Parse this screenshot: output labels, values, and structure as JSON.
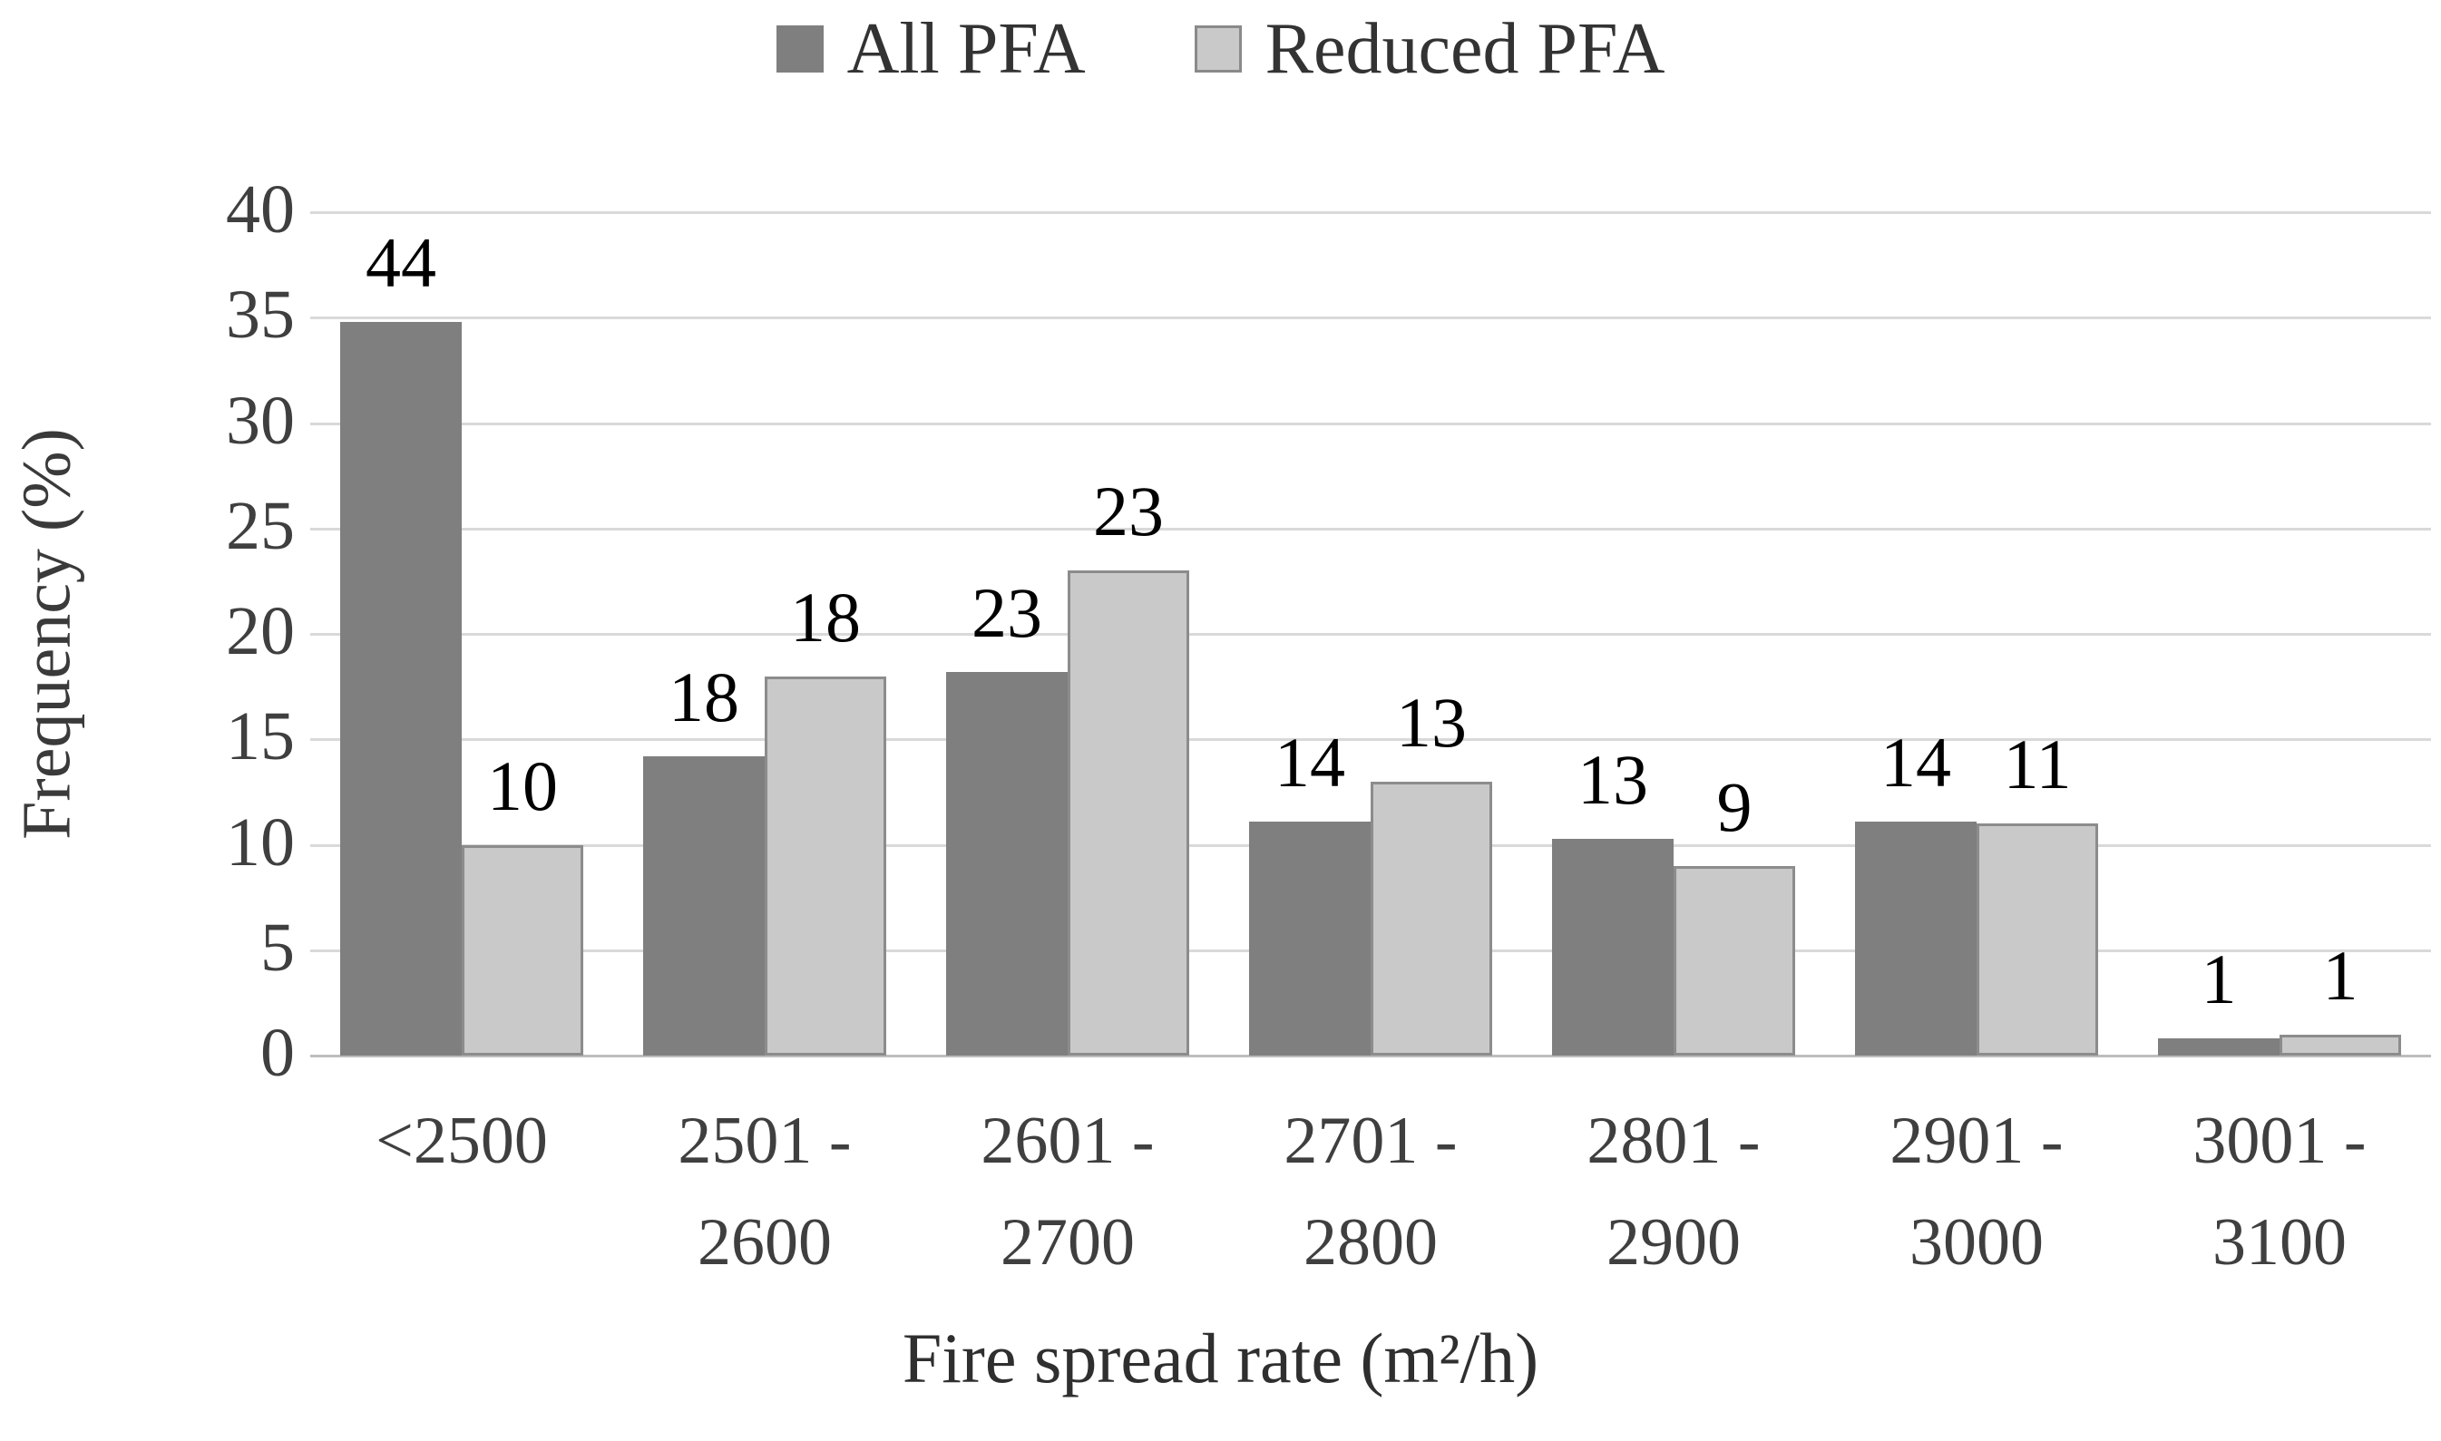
{
  "chart_data": {
    "type": "bar",
    "title": "",
    "xlabel": "Fire spread rate (m²/h)",
    "ylabel": "Frequency (%)",
    "ylim": [
      0,
      40
    ],
    "yticks": [
      0,
      5,
      10,
      15,
      20,
      25,
      30,
      35,
      40
    ],
    "grid": true,
    "legend_position": "top-center",
    "categories": [
      "<2500",
      "2501 -\n2600",
      "2601 -\n2700",
      "2701 -\n2800",
      "2801 -\n2900",
      "2901 -\n3000",
      "3001 -\n3100"
    ],
    "series": [
      {
        "name": "All PFA",
        "color": "#7f7f7f",
        "data_labels": [
          44,
          18,
          23,
          14,
          13,
          14,
          1
        ],
        "drawn_heights_pct": [
          34.8,
          14.2,
          18.2,
          11.1,
          10.3,
          11.1,
          0.8
        ]
      },
      {
        "name": "Reduced PFA",
        "color": "#c9c9c9",
        "border_color": "#8c8c8c",
        "data_labels": [
          10,
          18,
          23,
          13,
          9,
          11,
          1
        ],
        "drawn_heights_pct": [
          10,
          18,
          23,
          13,
          9,
          11,
          1
        ]
      }
    ]
  },
  "legend": {
    "all_pfa_label": "All PFA",
    "reduced_pfa_label": "Reduced PFA"
  },
  "axes": {
    "y_title": "Frequency (%)",
    "x_title": "Fire spread rate (m²/h)"
  }
}
